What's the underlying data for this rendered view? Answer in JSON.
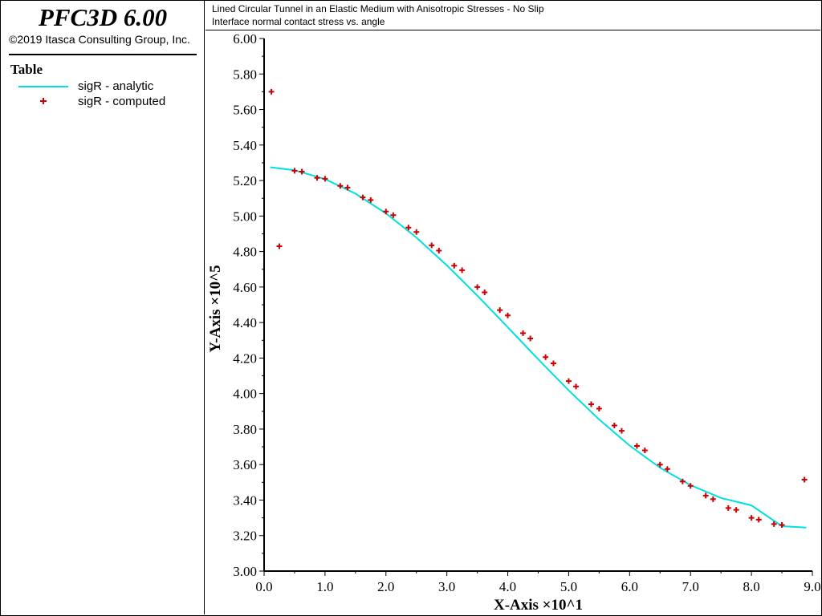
{
  "app": {
    "title": "PFC3D 6.00",
    "copyright": "©2019 Itasca Consulting Group, Inc."
  },
  "legend": {
    "heading": "Table",
    "items": [
      {
        "label": "sigR - analytic",
        "marker": "line",
        "color": "#00e0e0"
      },
      {
        "label": "sigR - computed",
        "marker": "plus",
        "color": "#cc0000"
      }
    ]
  },
  "chart_data": {
    "type": "scatter",
    "title": "Lined Circular Tunnel in an Elastic Medium with Anisotropic Stresses - No Slip",
    "subtitle": "Interface normal contact stress vs. angle",
    "xlabel": "X-Axis ×10^1",
    "ylabel": "Y-Axis ×10^5",
    "xlim": [
      0.0,
      9.0
    ],
    "ylim": [
      3.0,
      6.0
    ],
    "x_ticks": [
      "0.0",
      "1.0",
      "2.0",
      "3.0",
      "4.0",
      "5.0",
      "6.0",
      "7.0",
      "8.0",
      "9.0"
    ],
    "y_ticks": [
      "3.00",
      "3.20",
      "3.40",
      "3.60",
      "3.80",
      "4.00",
      "4.20",
      "4.40",
      "4.60",
      "4.80",
      "5.00",
      "5.20",
      "5.40",
      "5.60",
      "5.80",
      "6.00"
    ],
    "grid": false,
    "legend_position": "left panel",
    "series": [
      {
        "name": "sigR - analytic",
        "style": "line",
        "color": "#00e0e0",
        "x": [
          0.1,
          0.5,
          1.0,
          1.5,
          2.0,
          2.5,
          3.0,
          3.5,
          4.0,
          4.5,
          5.0,
          5.5,
          6.0,
          6.5,
          7.0,
          7.5,
          8.0,
          8.5,
          8.9
        ],
        "y": [
          5.275,
          5.258,
          5.208,
          5.126,
          5.015,
          4.879,
          4.722,
          4.552,
          4.373,
          4.193,
          4.018,
          3.854,
          3.707,
          3.582,
          3.484,
          3.412,
          3.37,
          3.253,
          3.245
        ]
      },
      {
        "name": "sigR - computed",
        "style": "plus",
        "color": "#cc0000",
        "x": [
          0.12,
          0.25,
          0.5,
          0.62,
          0.87,
          1.0,
          1.25,
          1.37,
          1.62,
          1.75,
          2.0,
          2.12,
          2.37,
          2.5,
          2.75,
          2.87,
          3.12,
          3.25,
          3.5,
          3.62,
          3.87,
          4.0,
          4.25,
          4.37,
          4.62,
          4.75,
          5.0,
          5.12,
          5.37,
          5.5,
          5.75,
          5.87,
          6.12,
          6.25,
          6.5,
          6.62,
          6.87,
          7.0,
          7.25,
          7.37,
          7.62,
          7.75,
          8.0,
          8.12,
          8.37,
          8.5,
          8.87
        ],
        "y": [
          5.7,
          4.83,
          5.255,
          5.25,
          5.215,
          5.21,
          5.17,
          5.16,
          5.105,
          5.09,
          5.025,
          5.005,
          4.935,
          4.91,
          4.835,
          4.805,
          4.72,
          4.695,
          4.6,
          4.57,
          4.47,
          4.44,
          4.34,
          4.31,
          4.205,
          4.17,
          4.07,
          4.04,
          3.94,
          3.915,
          3.82,
          3.79,
          3.705,
          3.68,
          3.6,
          3.575,
          3.505,
          3.48,
          3.425,
          3.405,
          3.355,
          3.345,
          3.3,
          3.29,
          3.265,
          3.26,
          3.515
        ]
      }
    ]
  }
}
